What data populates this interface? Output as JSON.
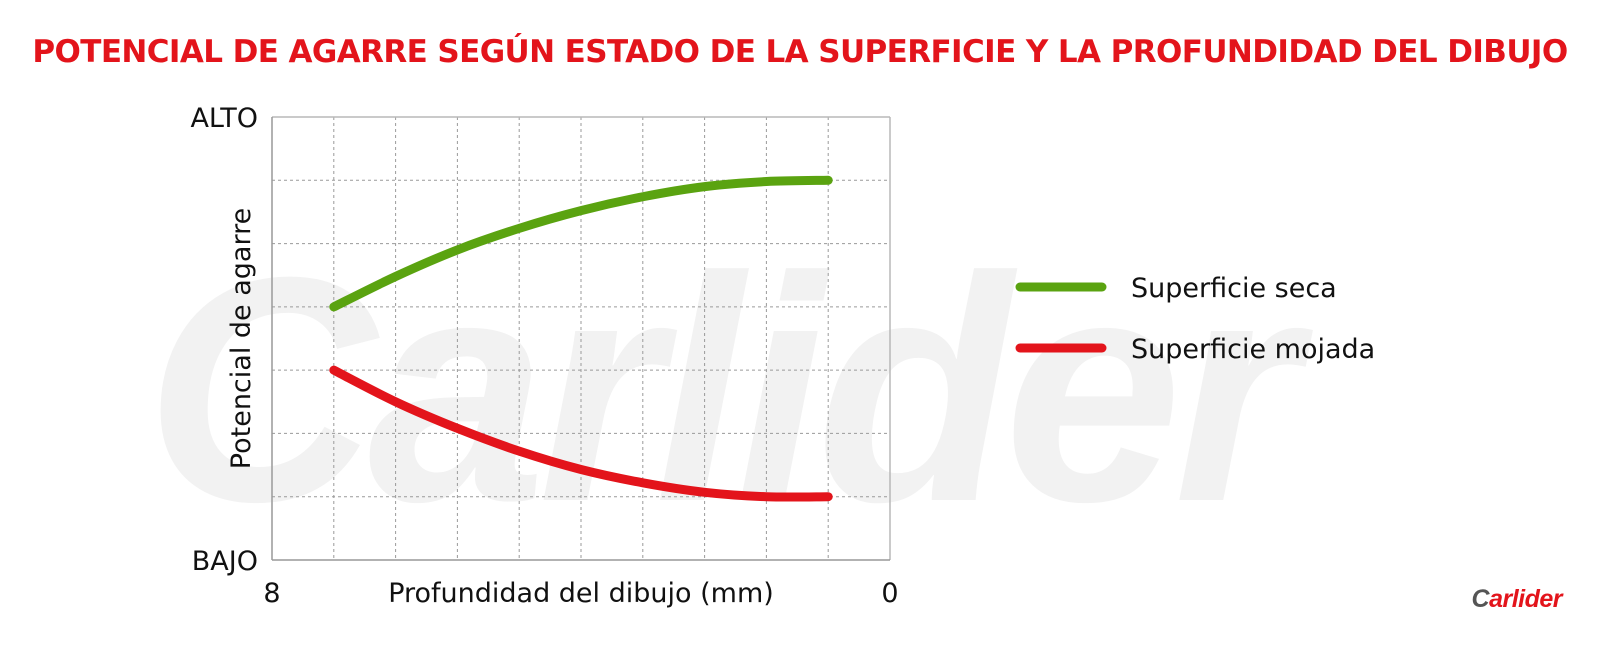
{
  "chart_data": {
    "type": "line",
    "title": "POTENCIAL DE AGARRE SEGÚN ESTADO DE LA SUPERFICIE Y LA PROFUNDIDAD DEL DIBUJO",
    "xlabel": "Profundidad del dibujo (mm)",
    "ylabel": "Potencial de agarre",
    "xlim": [
      8,
      0
    ],
    "ylim": [
      0,
      7
    ],
    "x_tick_labels": [
      {
        "value": 8,
        "label": "8"
      },
      {
        "value": 0,
        "label": "0"
      }
    ],
    "y_tick_labels": [
      {
        "value": 7,
        "label": "ALTO"
      },
      {
        "value": 0,
        "label": "BAJO"
      }
    ],
    "grid": true,
    "grid_x_step": 0.8,
    "grid_y_step": 1,
    "legend_position": "right",
    "series": [
      {
        "name": "Superficie seca",
        "color": "#5aa310",
        "x": [
          7.2,
          6.4,
          5.6,
          4.8,
          4.0,
          3.2,
          2.4,
          1.6,
          0.8
        ],
        "y": [
          4.0,
          4.48,
          4.9,
          5.24,
          5.52,
          5.74,
          5.9,
          5.98,
          6.0
        ]
      },
      {
        "name": "Superficie mojada",
        "color": "#e3141b",
        "x": [
          7.2,
          6.4,
          5.6,
          4.8,
          4.0,
          3.2,
          2.4,
          1.6,
          0.8
        ],
        "y": [
          3.0,
          2.5,
          2.08,
          1.72,
          1.43,
          1.22,
          1.07,
          1.0,
          1.0
        ]
      }
    ]
  },
  "watermark": {
    "text": "Carlider",
    "color": "#f2f2f2"
  },
  "logo": {
    "initial": "C",
    "rest": "arlider"
  }
}
